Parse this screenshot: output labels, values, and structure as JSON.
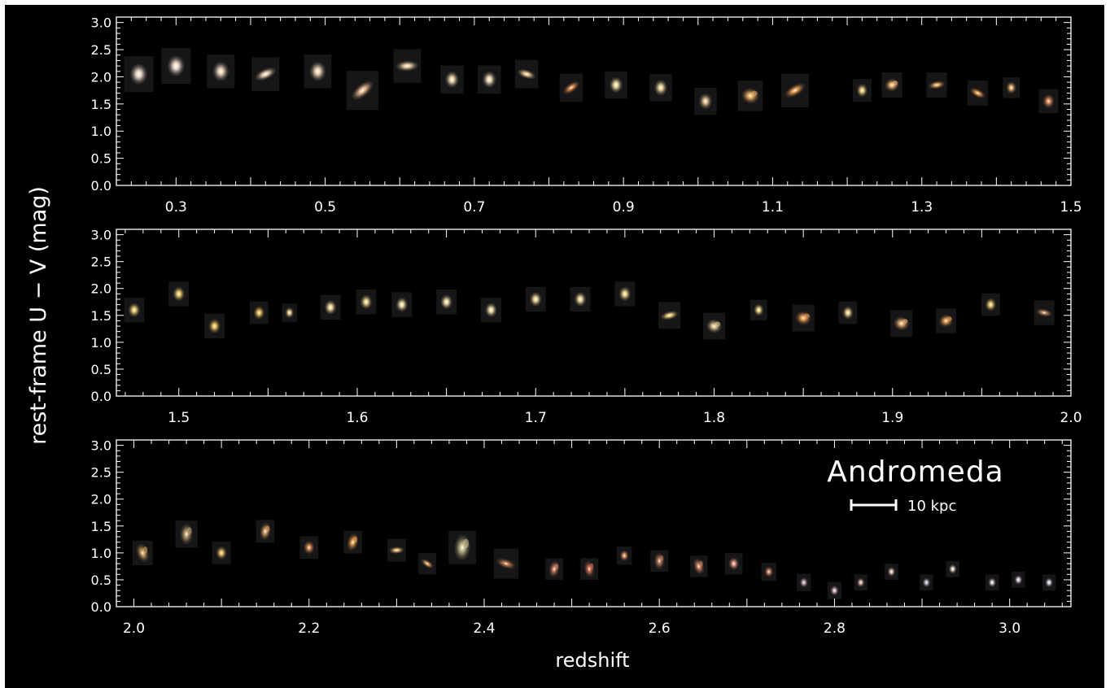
{
  "chart_data": {
    "type": "scatter",
    "ylabel": "rest-frame U − V (mag)",
    "xlabel": "redshift",
    "annotation": "Andromeda",
    "scale_bar_label": "10 kpc",
    "colors": {
      "background": "#000000",
      "axes": "#ffffff"
    },
    "panels": [
      {
        "xlim": [
          0.22,
          1.5
        ],
        "ylim": [
          0.0,
          3.1
        ],
        "xticks": [
          "0.3",
          "0.5",
          "0.7",
          "0.9",
          "1.1",
          "1.3",
          "1.5"
        ],
        "yticks": [
          "0.0",
          "0.5",
          "1.0",
          "1.5",
          "2.0",
          "2.5",
          "3.0"
        ],
        "galaxies": [
          {
            "z": 0.25,
            "uv": 2.05,
            "s": 0.66,
            "c": "#f3e2d2",
            "k": "elliptical"
          },
          {
            "z": 0.3,
            "uv": 2.2,
            "s": 0.66,
            "c": "#f5e6d5",
            "k": "elliptical"
          },
          {
            "z": 0.36,
            "uv": 2.1,
            "s": 0.62,
            "c": "#f0d8c0",
            "k": "elliptical"
          },
          {
            "z": 0.42,
            "uv": 2.05,
            "s": 0.62,
            "c": "#f2d6b8",
            "k": "disk"
          },
          {
            "z": 0.49,
            "uv": 2.1,
            "s": 0.62,
            "c": "#f6dcb6",
            "k": "elliptical"
          },
          {
            "z": 0.55,
            "uv": 1.75,
            "s": 0.72,
            "c": "#f0c090",
            "k": "disk"
          },
          {
            "z": 0.61,
            "uv": 2.2,
            "s": 0.62,
            "c": "#f4d4a8",
            "k": "disk"
          },
          {
            "z": 0.67,
            "uv": 1.95,
            "s": 0.52,
            "c": "#f6e0b0",
            "k": "elliptical"
          },
          {
            "z": 0.72,
            "uv": 1.95,
            "s": 0.52,
            "c": "#f8e4b8",
            "k": "elliptical"
          },
          {
            "z": 0.77,
            "uv": 2.05,
            "s": 0.52,
            "c": "#f2cc90",
            "k": "disk"
          },
          {
            "z": 0.83,
            "uv": 1.8,
            "s": 0.52,
            "c": "#e89050",
            "k": "disk"
          },
          {
            "z": 0.89,
            "uv": 1.85,
            "s": 0.5,
            "c": "#f6e4a8",
            "k": "elliptical"
          },
          {
            "z": 0.95,
            "uv": 1.8,
            "s": 0.5,
            "c": "#f2dca0",
            "k": "elliptical"
          },
          {
            "z": 1.01,
            "uv": 1.55,
            "s": 0.5,
            "c": "#e8c890",
            "k": "elliptical"
          },
          {
            "z": 1.07,
            "uv": 1.65,
            "s": 0.56,
            "c": "#f0b060",
            "k": "spiral"
          },
          {
            "z": 1.13,
            "uv": 1.75,
            "s": 0.62,
            "c": "#f0a050",
            "k": "disk"
          },
          {
            "z": 1.22,
            "uv": 1.75,
            "s": 0.42,
            "c": "#f4d480",
            "k": "elliptical"
          },
          {
            "z": 1.26,
            "uv": 1.85,
            "s": 0.46,
            "c": "#f0b870",
            "k": "spiral"
          },
          {
            "z": 1.32,
            "uv": 1.85,
            "s": 0.46,
            "c": "#f0b060",
            "k": "disk"
          },
          {
            "z": 1.375,
            "uv": 1.7,
            "s": 0.46,
            "c": "#f0a050",
            "k": "disk"
          },
          {
            "z": 1.42,
            "uv": 1.8,
            "s": 0.38,
            "c": "#f0b870",
            "k": "elliptical"
          },
          {
            "z": 1.47,
            "uv": 1.55,
            "s": 0.44,
            "c": "#e89060",
            "k": "elliptical"
          }
        ]
      },
      {
        "xlim": [
          1.465,
          2.0
        ],
        "ylim": [
          0.0,
          3.1
        ],
        "xticks": [
          "1.5",
          "1.6",
          "1.7",
          "1.8",
          "1.9",
          "2.0"
        ],
        "yticks": [
          "0.0",
          "0.5",
          "1.0",
          "1.5",
          "2.0",
          "2.5",
          "3.0"
        ],
        "galaxies": [
          {
            "z": 1.475,
            "uv": 1.6,
            "s": 0.46,
            "c": "#f6d070",
            "k": "elliptical"
          },
          {
            "z": 1.5,
            "uv": 1.9,
            "s": 0.46,
            "c": "#f8d070",
            "k": "elliptical"
          },
          {
            "z": 1.52,
            "uv": 1.3,
            "s": 0.46,
            "c": "#f6c860",
            "k": "elliptical"
          },
          {
            "z": 1.545,
            "uv": 1.55,
            "s": 0.42,
            "c": "#f6c860",
            "k": "elliptical"
          },
          {
            "z": 1.562,
            "uv": 1.55,
            "s": 0.34,
            "c": "#f8d890",
            "k": "elliptical"
          },
          {
            "z": 1.585,
            "uv": 1.65,
            "s": 0.46,
            "c": "#f8e0a0",
            "k": "elliptical"
          },
          {
            "z": 1.605,
            "uv": 1.75,
            "s": 0.46,
            "c": "#f8d890",
            "k": "elliptical"
          },
          {
            "z": 1.625,
            "uv": 1.7,
            "s": 0.46,
            "c": "#f8e4a8",
            "k": "elliptical"
          },
          {
            "z": 1.65,
            "uv": 1.75,
            "s": 0.46,
            "c": "#f8e4a8",
            "k": "elliptical"
          },
          {
            "z": 1.675,
            "uv": 1.6,
            "s": 0.46,
            "c": "#f8e4a8",
            "k": "elliptical"
          },
          {
            "z": 1.7,
            "uv": 1.8,
            "s": 0.46,
            "c": "#f8e0a0",
            "k": "elliptical"
          },
          {
            "z": 1.725,
            "uv": 1.8,
            "s": 0.46,
            "c": "#f8e0a0",
            "k": "elliptical"
          },
          {
            "z": 1.75,
            "uv": 1.9,
            "s": 0.46,
            "c": "#f8d890",
            "k": "elliptical"
          },
          {
            "z": 1.775,
            "uv": 1.5,
            "s": 0.5,
            "c": "#f6d080",
            "k": "disk"
          },
          {
            "z": 1.8,
            "uv": 1.3,
            "s": 0.5,
            "c": "#e0c890",
            "k": "spiral"
          },
          {
            "z": 1.825,
            "uv": 1.6,
            "s": 0.38,
            "c": "#f8d880",
            "k": "elliptical"
          },
          {
            "z": 1.85,
            "uv": 1.45,
            "s": 0.5,
            "c": "#f0a050",
            "k": "spiral"
          },
          {
            "z": 1.875,
            "uv": 1.55,
            "s": 0.42,
            "c": "#f6d890",
            "k": "elliptical"
          },
          {
            "z": 1.905,
            "uv": 1.35,
            "s": 0.5,
            "c": "#e8b070",
            "k": "spiral"
          },
          {
            "z": 1.93,
            "uv": 1.4,
            "s": 0.46,
            "c": "#e8a050",
            "k": "spiral"
          },
          {
            "z": 1.955,
            "uv": 1.7,
            "s": 0.42,
            "c": "#f6d070",
            "k": "elliptical"
          },
          {
            "z": 1.985,
            "uv": 1.55,
            "s": 0.46,
            "c": "#c09060",
            "k": "disk"
          }
        ]
      },
      {
        "xlim": [
          1.98,
          3.07
        ],
        "ylim": [
          0.0,
          3.1
        ],
        "xticks": [
          "2.0",
          "2.2",
          "2.4",
          "2.6",
          "2.8",
          "3.0"
        ],
        "yticks": [
          "0.0",
          "0.5",
          "1.0",
          "1.5",
          "2.0",
          "2.5",
          "3.0"
        ],
        "galaxies": [
          {
            "z": 2.01,
            "uv": 1.0,
            "s": 0.46,
            "c": "#d0a060",
            "k": "clumpy"
          },
          {
            "z": 2.06,
            "uv": 1.35,
            "s": 0.5,
            "c": "#c0a070",
            "k": "clumpy"
          },
          {
            "z": 2.1,
            "uv": 1.0,
            "s": 0.42,
            "c": "#f0c060",
            "k": "elliptical"
          },
          {
            "z": 2.15,
            "uv": 1.4,
            "s": 0.42,
            "c": "#d8a060",
            "k": "clumpy"
          },
          {
            "z": 2.2,
            "uv": 1.1,
            "s": 0.42,
            "c": "#e09050",
            "k": "elliptical"
          },
          {
            "z": 2.25,
            "uv": 1.2,
            "s": 0.42,
            "c": "#e8a050",
            "k": "clumpy"
          },
          {
            "z": 2.3,
            "uv": 1.05,
            "s": 0.42,
            "c": "#f0c070",
            "k": "disk"
          },
          {
            "z": 2.335,
            "uv": 0.8,
            "s": 0.4,
            "c": "#e0a060",
            "k": "disk"
          },
          {
            "z": 2.375,
            "uv": 1.1,
            "s": 0.62,
            "c": "#c8c090",
            "k": "clumpy"
          },
          {
            "z": 2.425,
            "uv": 0.8,
            "s": 0.56,
            "c": "#c08050",
            "k": "disk"
          },
          {
            "z": 2.48,
            "uv": 0.7,
            "s": 0.4,
            "c": "#d08060",
            "k": "clumpy"
          },
          {
            "z": 2.52,
            "uv": 0.7,
            "s": 0.4,
            "c": "#d07050",
            "k": "clumpy"
          },
          {
            "z": 2.56,
            "uv": 0.95,
            "s": 0.34,
            "c": "#f0a070",
            "k": "elliptical"
          },
          {
            "z": 2.6,
            "uv": 0.85,
            "s": 0.4,
            "c": "#c08060",
            "k": "clumpy"
          },
          {
            "z": 2.645,
            "uv": 0.75,
            "s": 0.4,
            "c": "#d08060",
            "k": "clumpy"
          },
          {
            "z": 2.685,
            "uv": 0.8,
            "s": 0.4,
            "c": "#f0a080",
            "k": "elliptical"
          },
          {
            "z": 2.725,
            "uv": 0.65,
            "s": 0.34,
            "c": "#e09070",
            "k": "elliptical"
          },
          {
            "z": 2.765,
            "uv": 0.45,
            "s": 0.32,
            "c": "#d0b0c0",
            "k": "elliptical"
          },
          {
            "z": 2.8,
            "uv": 0.3,
            "s": 0.32,
            "c": "#e0c0d0",
            "k": "elliptical"
          },
          {
            "z": 2.83,
            "uv": 0.45,
            "s": 0.3,
            "c": "#e8c0b0",
            "k": "elliptical"
          },
          {
            "z": 2.865,
            "uv": 0.65,
            "s": 0.3,
            "c": "#f0d0c0",
            "k": "elliptical"
          },
          {
            "z": 2.905,
            "uv": 0.45,
            "s": 0.3,
            "c": "#d0c8e0",
            "k": "elliptical"
          },
          {
            "z": 2.935,
            "uv": 0.7,
            "s": 0.3,
            "c": "#f0e0d0",
            "k": "elliptical"
          },
          {
            "z": 2.98,
            "uv": 0.45,
            "s": 0.3,
            "c": "#e8d8e0",
            "k": "elliptical"
          },
          {
            "z": 3.01,
            "uv": 0.5,
            "s": 0.3,
            "c": "#e8d8e8",
            "k": "elliptical"
          },
          {
            "z": 3.045,
            "uv": 0.45,
            "s": 0.3,
            "c": "#e0e0f0",
            "k": "elliptical"
          }
        ]
      }
    ]
  }
}
